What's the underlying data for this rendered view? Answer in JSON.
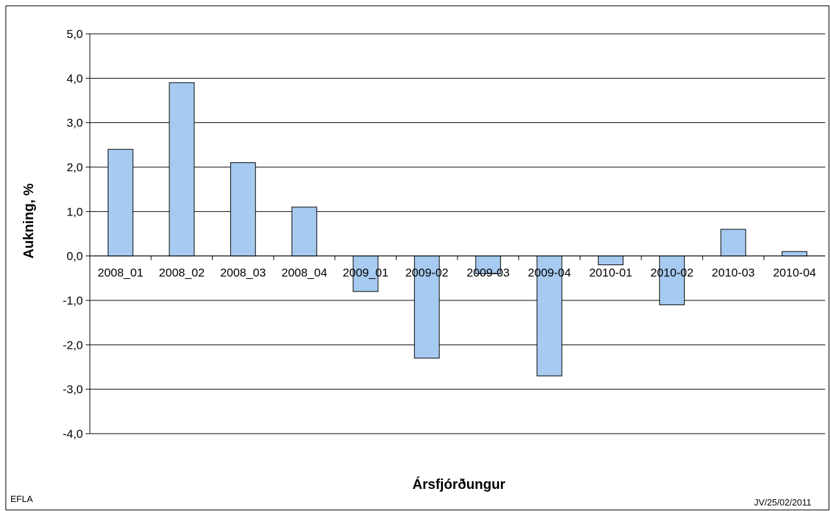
{
  "chart_data": {
    "type": "bar",
    "categories": [
      "2008_01",
      "2008_02",
      "2008_03",
      "2008_04",
      "2009_01",
      "2009-02",
      "2009-03",
      "2009-04",
      "2010-01",
      "2010-02",
      "2010-03",
      "2010-04"
    ],
    "values": [
      2.4,
      3.9,
      2.1,
      1.1,
      -0.8,
      -2.3,
      -0.4,
      -2.7,
      -0.2,
      -1.1,
      0.6,
      0.1
    ],
    "xlabel": "Ársfjórðungur",
    "ylabel": "Aukning, %",
    "ylim": [
      -4,
      5
    ],
    "yticks": [
      "5,0",
      "4,0",
      "3,0",
      "2,0",
      "1,0",
      "0,0",
      "-1,0",
      "-2,0",
      "-3,0",
      "-4,0"
    ],
    "grid": true,
    "bar_color": "#a6caf0"
  },
  "footer": {
    "left": "EFLA",
    "right": "JV/25/02/2011"
  }
}
